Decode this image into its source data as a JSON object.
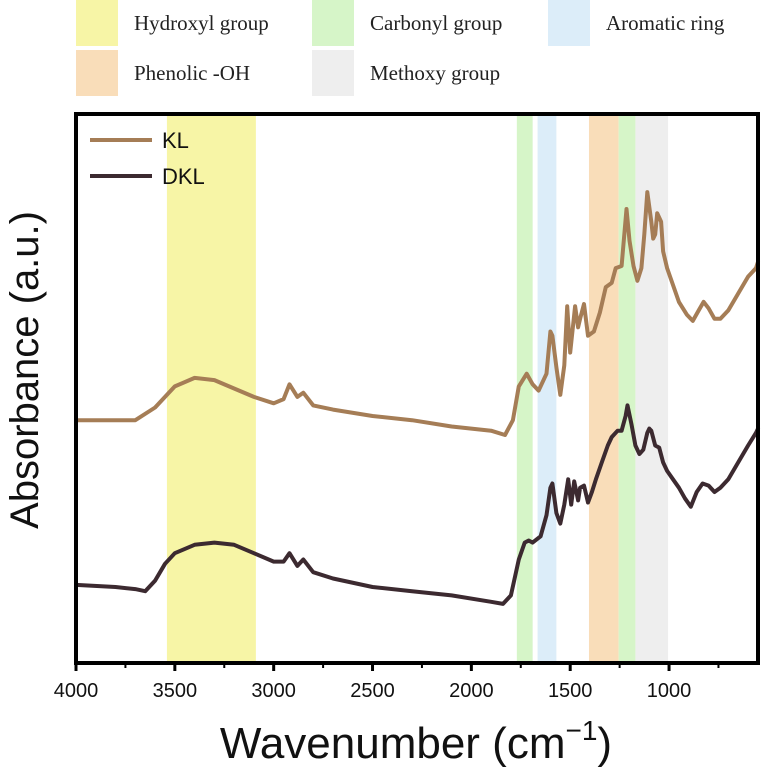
{
  "chart_data": {
    "type": "line",
    "xlabel": "Wavenumber (cm",
    "xlabel_sup": "−1",
    "xlabel_end": ")",
    "ylabel": "Absorbance (a.u.)",
    "xlim": [
      4000,
      550
    ],
    "x_reversed": true,
    "y_ticks_shown": false,
    "x_ticks": [
      4000,
      3500,
      3000,
      2500,
      2000,
      1500,
      1000
    ],
    "region_legend": [
      {
        "label": "Hydroxyl group",
        "color": "#f7f5a6"
      },
      {
        "label": "Carbonyl group",
        "color": "#d6f5c8"
      },
      {
        "label": "Aromatic ring",
        "color": "#dcedf9"
      },
      {
        "label": "Phenolic -OH",
        "color": "#f9ddb9"
      },
      {
        "label": "Methoxy group",
        "color": "#eeeeee"
      }
    ],
    "regions": [
      {
        "label": "Hydroxyl group",
        "from": 3540,
        "to": 3090,
        "color": "#f7f5a6"
      },
      {
        "label": "Carbonyl group",
        "from": 1770,
        "to": 1690,
        "color": "#d6f5c8"
      },
      {
        "label": "Aromatic ring",
        "from": 1665,
        "to": 1570,
        "color": "#dcedf9"
      },
      {
        "label": "Phenolic -OH",
        "from": 1405,
        "to": 1255,
        "color": "#f9ddb9"
      },
      {
        "label": "Carbonyl group",
        "from": 1255,
        "to": 1170,
        "color": "#d6f5c8"
      },
      {
        "label": "Methoxy group",
        "from": 1170,
        "to": 1005,
        "color": "#eeeeee"
      }
    ],
    "series": [
      {
        "name": "KL",
        "color": "#a57d56",
        "points": [
          [
            4000,
            0.1
          ],
          [
            3800,
            0.1
          ],
          [
            3700,
            0.1
          ],
          [
            3600,
            0.16
          ],
          [
            3500,
            0.26
          ],
          [
            3400,
            0.3
          ],
          [
            3300,
            0.29
          ],
          [
            3200,
            0.25
          ],
          [
            3100,
            0.21
          ],
          [
            3000,
            0.18
          ],
          [
            2950,
            0.2
          ],
          [
            2920,
            0.27
          ],
          [
            2880,
            0.21
          ],
          [
            2850,
            0.23
          ],
          [
            2800,
            0.17
          ],
          [
            2700,
            0.15
          ],
          [
            2500,
            0.12
          ],
          [
            2300,
            0.1
          ],
          [
            2100,
            0.07
          ],
          [
            1900,
            0.05
          ],
          [
            1830,
            0.03
          ],
          [
            1790,
            0.1
          ],
          [
            1760,
            0.26
          ],
          [
            1720,
            0.32
          ],
          [
            1690,
            0.27
          ],
          [
            1660,
            0.24
          ],
          [
            1620,
            0.32
          ],
          [
            1600,
            0.52
          ],
          [
            1590,
            0.5
          ],
          [
            1570,
            0.35
          ],
          [
            1550,
            0.22
          ],
          [
            1530,
            0.36
          ],
          [
            1515,
            0.64
          ],
          [
            1500,
            0.42
          ],
          [
            1475,
            0.64
          ],
          [
            1460,
            0.54
          ],
          [
            1450,
            0.58
          ],
          [
            1430,
            0.65
          ],
          [
            1410,
            0.5
          ],
          [
            1380,
            0.52
          ],
          [
            1350,
            0.61
          ],
          [
            1320,
            0.73
          ],
          [
            1290,
            0.75
          ],
          [
            1270,
            0.82
          ],
          [
            1240,
            0.83
          ],
          [
            1215,
            1.1
          ],
          [
            1200,
            0.95
          ],
          [
            1180,
            0.83
          ],
          [
            1160,
            0.76
          ],
          [
            1140,
            0.82
          ],
          [
            1125,
            0.98
          ],
          [
            1110,
            1.18
          ],
          [
            1090,
            1.04
          ],
          [
            1080,
            0.96
          ],
          [
            1070,
            0.98
          ],
          [
            1060,
            1.08
          ],
          [
            1040,
            1.04
          ],
          [
            1030,
            0.9
          ],
          [
            1010,
            0.82
          ],
          [
            980,
            0.74
          ],
          [
            950,
            0.66
          ],
          [
            910,
            0.6
          ],
          [
            880,
            0.57
          ],
          [
            850,
            0.62
          ],
          [
            825,
            0.66
          ],
          [
            800,
            0.63
          ],
          [
            770,
            0.58
          ],
          [
            740,
            0.58
          ],
          [
            700,
            0.62
          ],
          [
            650,
            0.7
          ],
          [
            600,
            0.78
          ],
          [
            560,
            0.82
          ],
          [
            550,
            0.85
          ]
        ]
      },
      {
        "name": "DKL",
        "color": "#3c2a30",
        "points": [
          [
            4000,
            -0.68
          ],
          [
            3800,
            -0.69
          ],
          [
            3700,
            -0.7
          ],
          [
            3650,
            -0.71
          ],
          [
            3600,
            -0.66
          ],
          [
            3550,
            -0.58
          ],
          [
            3500,
            -0.53
          ],
          [
            3400,
            -0.49
          ],
          [
            3300,
            -0.48
          ],
          [
            3200,
            -0.49
          ],
          [
            3100,
            -0.53
          ],
          [
            3000,
            -0.57
          ],
          [
            2950,
            -0.57
          ],
          [
            2920,
            -0.53
          ],
          [
            2880,
            -0.59
          ],
          [
            2850,
            -0.56
          ],
          [
            2800,
            -0.62
          ],
          [
            2700,
            -0.65
          ],
          [
            2500,
            -0.69
          ],
          [
            2300,
            -0.71
          ],
          [
            2100,
            -0.73
          ],
          [
            1900,
            -0.76
          ],
          [
            1840,
            -0.77
          ],
          [
            1800,
            -0.73
          ],
          [
            1760,
            -0.56
          ],
          [
            1730,
            -0.48
          ],
          [
            1710,
            -0.47
          ],
          [
            1690,
            -0.48
          ],
          [
            1650,
            -0.45
          ],
          [
            1620,
            -0.35
          ],
          [
            1600,
            -0.22
          ],
          [
            1590,
            -0.2
          ],
          [
            1570,
            -0.34
          ],
          [
            1550,
            -0.39
          ],
          [
            1530,
            -0.3
          ],
          [
            1510,
            -0.18
          ],
          [
            1495,
            -0.3
          ],
          [
            1480,
            -0.19
          ],
          [
            1460,
            -0.28
          ],
          [
            1450,
            -0.22
          ],
          [
            1430,
            -0.21
          ],
          [
            1410,
            -0.29
          ],
          [
            1390,
            -0.24
          ],
          [
            1370,
            -0.18
          ],
          [
            1340,
            -0.1
          ],
          [
            1310,
            -0.02
          ],
          [
            1290,
            0.02
          ],
          [
            1260,
            0.05
          ],
          [
            1240,
            0.05
          ],
          [
            1220,
            0.12
          ],
          [
            1210,
            0.17
          ],
          [
            1190,
            0.08
          ],
          [
            1170,
            -0.02
          ],
          [
            1150,
            -0.06
          ],
          [
            1130,
            -0.04
          ],
          [
            1110,
            0.04
          ],
          [
            1100,
            0.06
          ],
          [
            1090,
            0.05
          ],
          [
            1070,
            -0.02
          ],
          [
            1050,
            -0.03
          ],
          [
            1030,
            -0.1
          ],
          [
            1010,
            -0.14
          ],
          [
            980,
            -0.18
          ],
          [
            950,
            -0.22
          ],
          [
            920,
            -0.27
          ],
          [
            890,
            -0.31
          ],
          [
            860,
            -0.24
          ],
          [
            830,
            -0.2
          ],
          [
            800,
            -0.21
          ],
          [
            770,
            -0.24
          ],
          [
            740,
            -0.22
          ],
          [
            700,
            -0.18
          ],
          [
            650,
            -0.1
          ],
          [
            600,
            -0.02
          ],
          [
            560,
            0.04
          ],
          [
            550,
            0.06
          ]
        ]
      }
    ],
    "ylim": [
      -1.05,
      1.55
    ]
  }
}
